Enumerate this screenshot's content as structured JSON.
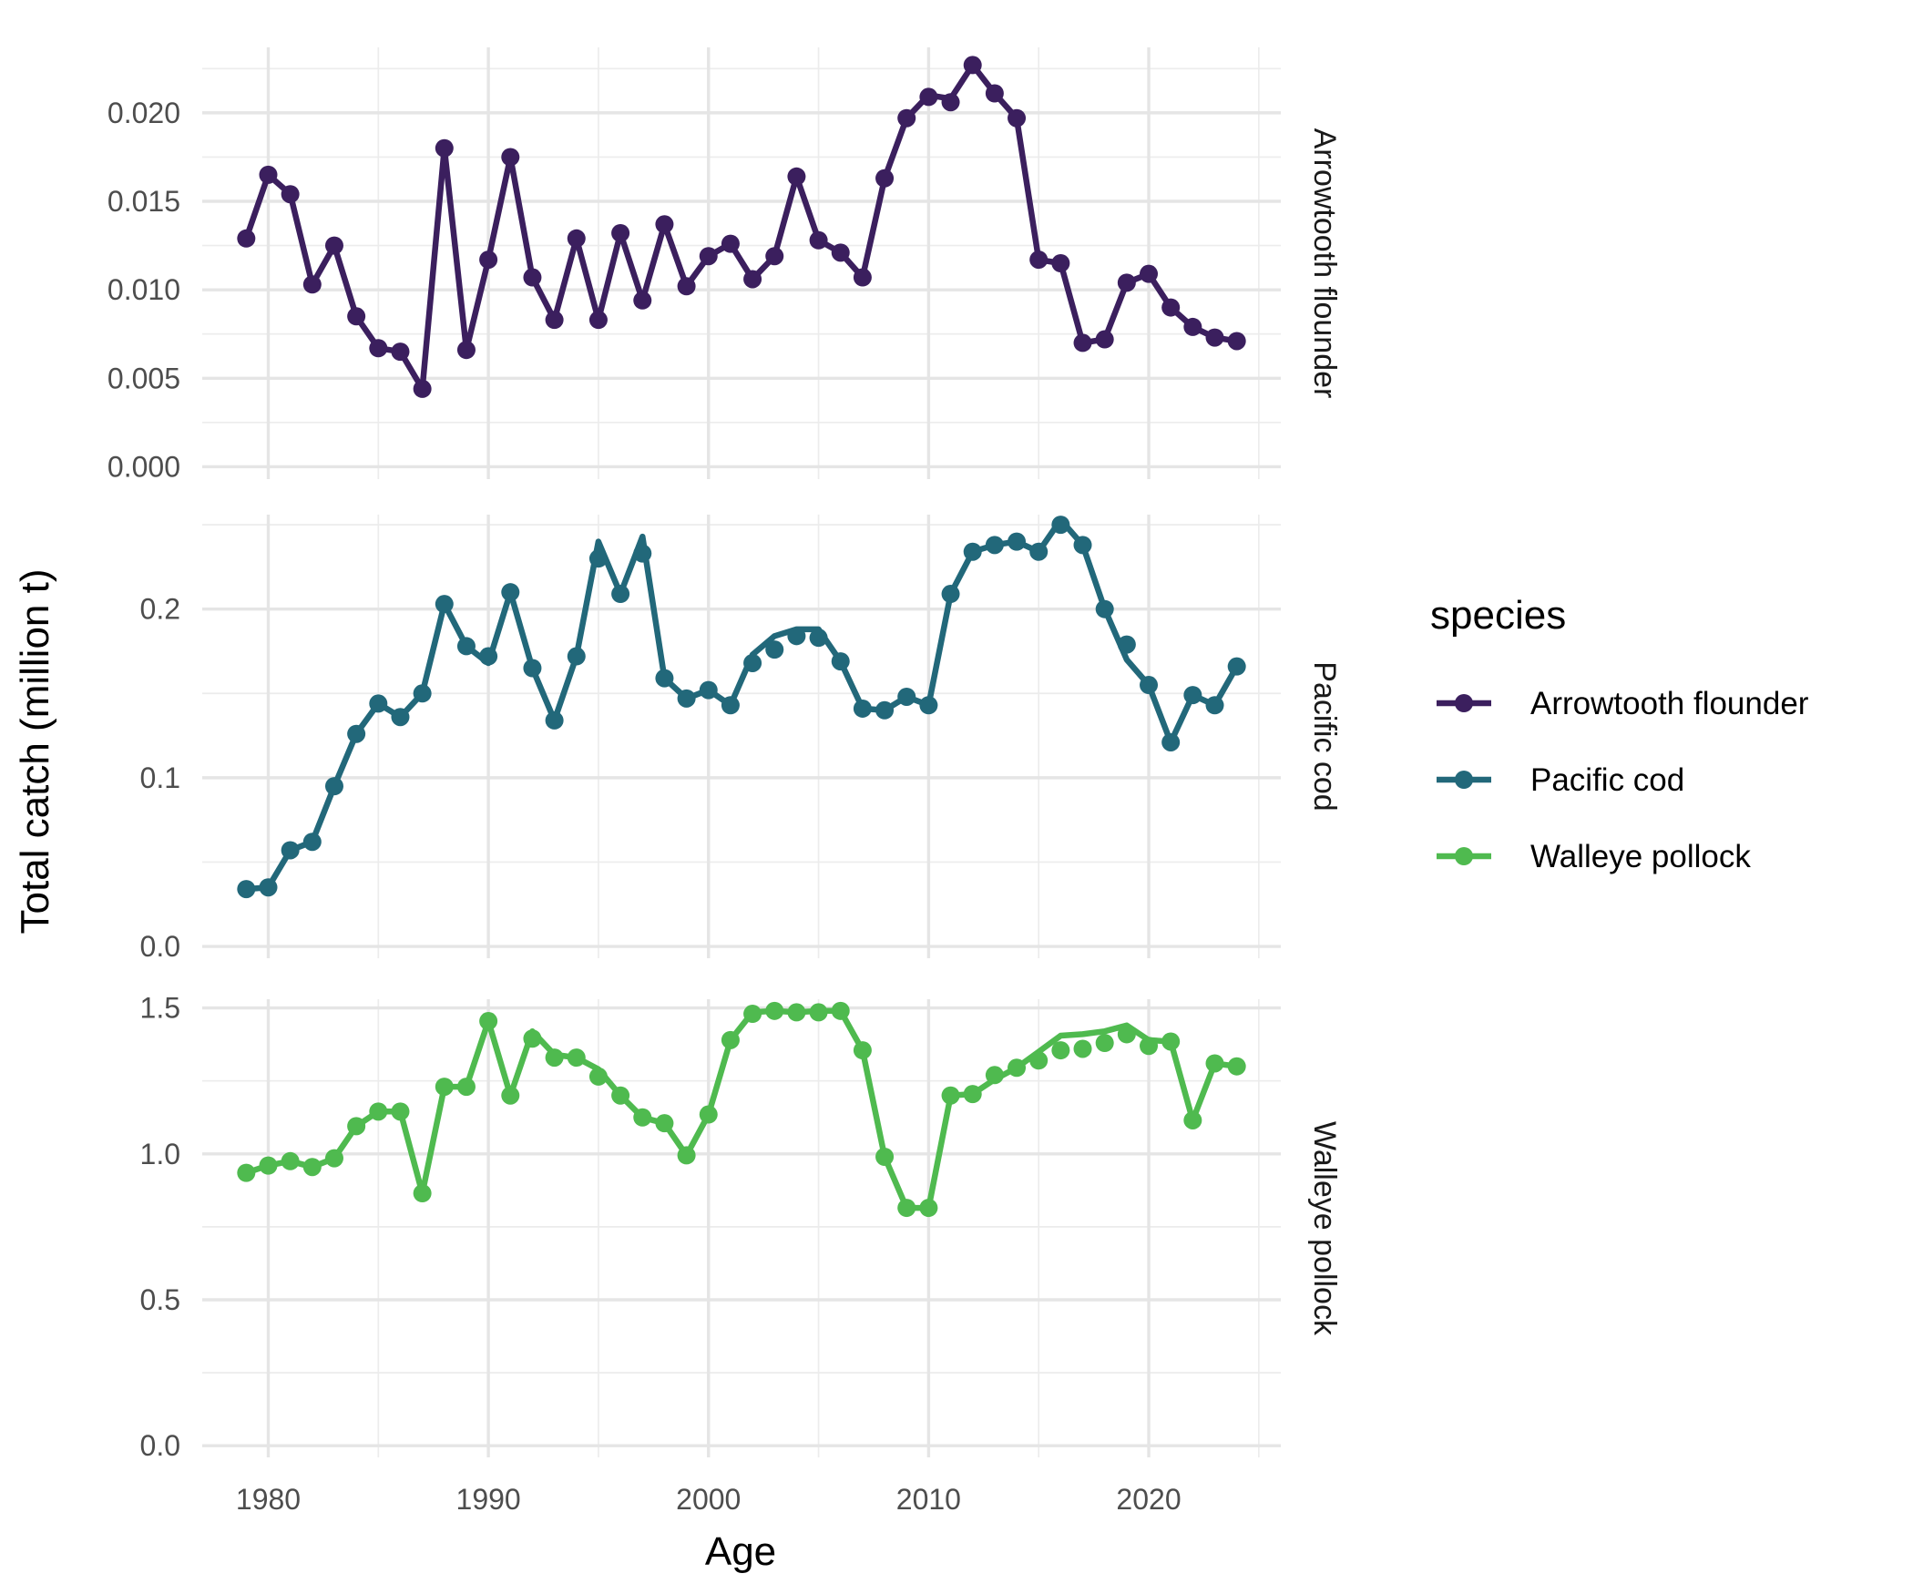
{
  "chart_data": {
    "type": "line",
    "xlabel": "Age",
    "ylabel": "Total catch (million t)",
    "legend": {
      "title": "species",
      "position": "right"
    },
    "grid": true,
    "x_ticks": [
      1980,
      1990,
      2000,
      2010,
      2020
    ],
    "xlim": [
      1977,
      2026
    ],
    "series": [
      {
        "name": "Arrowtooth flounder",
        "color": "#3b1f5e",
        "ylim": [
          -0.0007,
          0.0237
        ],
        "y_ticks": [
          "0.000",
          "0.005",
          "0.010",
          "0.015",
          "0.020"
        ],
        "y_tick_values": [
          0,
          0.005,
          0.01,
          0.015,
          0.02
        ],
        "line": [
          [
            1979,
            0.0129
          ],
          [
            1980,
            0.0165
          ],
          [
            1981,
            0.0154
          ],
          [
            1982,
            0.0103
          ],
          [
            1983,
            0.0125
          ],
          [
            1984,
            0.0085
          ],
          [
            1985,
            0.0067
          ],
          [
            1986,
            0.0065
          ],
          [
            1987,
            0.0044
          ],
          [
            1988,
            0.018
          ],
          [
            1989,
            0.0066
          ],
          [
            1990,
            0.0117
          ],
          [
            1991,
            0.0175
          ],
          [
            1992,
            0.0107
          ],
          [
            1993,
            0.0083
          ],
          [
            1994,
            0.0129
          ],
          [
            1995,
            0.0083
          ],
          [
            1996,
            0.0132
          ],
          [
            1997,
            0.0094
          ],
          [
            1998,
            0.0137
          ],
          [
            1999,
            0.0102
          ],
          [
            2000,
            0.0119
          ],
          [
            2001,
            0.0126
          ],
          [
            2002,
            0.0106
          ],
          [
            2003,
            0.0119
          ],
          [
            2004,
            0.0164
          ],
          [
            2005,
            0.0128
          ],
          [
            2006,
            0.0121
          ],
          [
            2007,
            0.0107
          ],
          [
            2008,
            0.0163
          ],
          [
            2009,
            0.0197
          ],
          [
            2010,
            0.021
          ],
          [
            2011,
            0.0208
          ],
          [
            2012,
            0.0227
          ],
          [
            2013,
            0.0211
          ],
          [
            2014,
            0.0197
          ],
          [
            2015,
            0.0117
          ],
          [
            2016,
            0.0115
          ],
          [
            2017,
            0.007
          ],
          [
            2018,
            0.0072
          ],
          [
            2019,
            0.0104
          ],
          [
            2020,
            0.0109
          ],
          [
            2021,
            0.009
          ],
          [
            2022,
            0.0079
          ],
          [
            2023,
            0.0073
          ],
          [
            2024,
            0.0071
          ]
        ],
        "points": [
          [
            1979,
            0.0129
          ],
          [
            1980,
            0.0165
          ],
          [
            1981,
            0.0154
          ],
          [
            1982,
            0.0103
          ],
          [
            1983,
            0.0125
          ],
          [
            1984,
            0.0085
          ],
          [
            1985,
            0.0067
          ],
          [
            1986,
            0.0065
          ],
          [
            1987,
            0.0044
          ],
          [
            1988,
            0.018
          ],
          [
            1989,
            0.0066
          ],
          [
            1990,
            0.0117
          ],
          [
            1991,
            0.0175
          ],
          [
            1992,
            0.0107
          ],
          [
            1993,
            0.0083
          ],
          [
            1994,
            0.0129
          ],
          [
            1995,
            0.0083
          ],
          [
            1996,
            0.0132
          ],
          [
            1997,
            0.0094
          ],
          [
            1998,
            0.0137
          ],
          [
            1999,
            0.0102
          ],
          [
            2000,
            0.0119
          ],
          [
            2001,
            0.0126
          ],
          [
            2002,
            0.0106
          ],
          [
            2003,
            0.0119
          ],
          [
            2004,
            0.0164
          ],
          [
            2005,
            0.0128
          ],
          [
            2006,
            0.0121
          ],
          [
            2007,
            0.0107
          ],
          [
            2008,
            0.0163
          ],
          [
            2009,
            0.0197
          ],
          [
            2010,
            0.0209
          ],
          [
            2011,
            0.0206
          ],
          [
            2012,
            0.0227
          ],
          [
            2013,
            0.0211
          ],
          [
            2014,
            0.0197
          ],
          [
            2015,
            0.0117
          ],
          [
            2016,
            0.0115
          ],
          [
            2017,
            0.007
          ],
          [
            2018,
            0.0072
          ],
          [
            2019,
            0.0104
          ],
          [
            2020,
            0.0109
          ],
          [
            2021,
            0.009
          ],
          [
            2022,
            0.0079
          ],
          [
            2023,
            0.0073
          ],
          [
            2024,
            0.0071
          ]
        ]
      },
      {
        "name": "Pacific cod",
        "color": "#22687a",
        "ylim": [
          -0.007,
          0.256
        ],
        "y_ticks": [
          "0.0",
          "0.1",
          "0.2"
        ],
        "y_tick_values": [
          0,
          0.1,
          0.2
        ],
        "line": [
          [
            1979,
            0.034
          ],
          [
            1980,
            0.035
          ],
          [
            1981,
            0.057
          ],
          [
            1982,
            0.062
          ],
          [
            1983,
            0.095
          ],
          [
            1984,
            0.126
          ],
          [
            1985,
            0.144
          ],
          [
            1986,
            0.136
          ],
          [
            1987,
            0.15
          ],
          [
            1988,
            0.203
          ],
          [
            1989,
            0.178
          ],
          [
            1990,
            0.168
          ],
          [
            1991,
            0.21
          ],
          [
            1992,
            0.165
          ],
          [
            1993,
            0.134
          ],
          [
            1994,
            0.172
          ],
          [
            1995,
            0.24
          ],
          [
            1996,
            0.209
          ],
          [
            1997,
            0.243
          ],
          [
            1998,
            0.159
          ],
          [
            1999,
            0.147
          ],
          [
            2000,
            0.152
          ],
          [
            2001,
            0.143
          ],
          [
            2002,
            0.173
          ],
          [
            2003,
            0.184
          ],
          [
            2004,
            0.188
          ],
          [
            2005,
            0.188
          ],
          [
            2006,
            0.169
          ],
          [
            2007,
            0.141
          ],
          [
            2008,
            0.14
          ],
          [
            2009,
            0.148
          ],
          [
            2010,
            0.143
          ],
          [
            2011,
            0.209
          ],
          [
            2012,
            0.234
          ],
          [
            2013,
            0.238
          ],
          [
            2014,
            0.24
          ],
          [
            2015,
            0.234
          ],
          [
            2016,
            0.253
          ],
          [
            2017,
            0.238
          ],
          [
            2018,
            0.2
          ],
          [
            2019,
            0.17
          ],
          [
            2020,
            0.155
          ],
          [
            2021,
            0.121
          ],
          [
            2022,
            0.149
          ],
          [
            2023,
            0.143
          ],
          [
            2024,
            0.166
          ]
        ],
        "points": [
          [
            1979,
            0.034
          ],
          [
            1980,
            0.035
          ],
          [
            1981,
            0.057
          ],
          [
            1982,
            0.062
          ],
          [
            1983,
            0.095
          ],
          [
            1984,
            0.126
          ],
          [
            1985,
            0.144
          ],
          [
            1986,
            0.136
          ],
          [
            1987,
            0.15
          ],
          [
            1988,
            0.203
          ],
          [
            1989,
            0.178
          ],
          [
            1990,
            0.172
          ],
          [
            1991,
            0.21
          ],
          [
            1992,
            0.165
          ],
          [
            1993,
            0.134
          ],
          [
            1994,
            0.172
          ],
          [
            1995,
            0.23
          ],
          [
            1996,
            0.209
          ],
          [
            1997,
            0.233
          ],
          [
            1998,
            0.159
          ],
          [
            1999,
            0.147
          ],
          [
            2000,
            0.152
          ],
          [
            2001,
            0.143
          ],
          [
            2002,
            0.168
          ],
          [
            2003,
            0.176
          ],
          [
            2004,
            0.184
          ],
          [
            2005,
            0.183
          ],
          [
            2006,
            0.169
          ],
          [
            2007,
            0.141
          ],
          [
            2008,
            0.14
          ],
          [
            2009,
            0.148
          ],
          [
            2010,
            0.143
          ],
          [
            2011,
            0.209
          ],
          [
            2012,
            0.234
          ],
          [
            2013,
            0.238
          ],
          [
            2014,
            0.24
          ],
          [
            2015,
            0.234
          ],
          [
            2016,
            0.25
          ],
          [
            2017,
            0.238
          ],
          [
            2018,
            0.2
          ],
          [
            2019,
            0.179
          ],
          [
            2020,
            0.155
          ],
          [
            2021,
            0.121
          ],
          [
            2022,
            0.149
          ],
          [
            2023,
            0.143
          ],
          [
            2024,
            0.166
          ]
        ]
      },
      {
        "name": "Walleye pollock",
        "color": "#4fba4f",
        "ylim": [
          -0.04,
          1.53
        ],
        "y_ticks": [
          "0.0",
          "0.5",
          "1.0",
          "1.5"
        ],
        "y_tick_values": [
          0,
          0.5,
          1.0,
          1.5
        ],
        "line": [
          [
            1979,
            0.935
          ],
          [
            1980,
            0.96
          ],
          [
            1981,
            0.975
          ],
          [
            1982,
            0.955
          ],
          [
            1983,
            0.985
          ],
          [
            1984,
            1.095
          ],
          [
            1985,
            1.145
          ],
          [
            1986,
            1.145
          ],
          [
            1987,
            0.865
          ],
          [
            1988,
            1.23
          ],
          [
            1989,
            1.23
          ],
          [
            1990,
            1.455
          ],
          [
            1991,
            1.2
          ],
          [
            1992,
            1.42
          ],
          [
            1993,
            1.34
          ],
          [
            1994,
            1.33
          ],
          [
            1995,
            1.29
          ],
          [
            1996,
            1.2
          ],
          [
            1997,
            1.125
          ],
          [
            1998,
            1.105
          ],
          [
            1999,
            0.995
          ],
          [
            2000,
            1.135
          ],
          [
            2001,
            1.39
          ],
          [
            2002,
            1.485
          ],
          [
            2003,
            1.49
          ],
          [
            2004,
            1.485
          ],
          [
            2005,
            1.49
          ],
          [
            2006,
            1.49
          ],
          [
            2007,
            1.355
          ],
          [
            2008,
            0.99
          ],
          [
            2009,
            0.815
          ],
          [
            2010,
            0.815
          ],
          [
            2011,
            1.2
          ],
          [
            2012,
            1.205
          ],
          [
            2013,
            1.255
          ],
          [
            2014,
            1.295
          ],
          [
            2015,
            1.35
          ],
          [
            2016,
            1.405
          ],
          [
            2017,
            1.41
          ],
          [
            2018,
            1.42
          ],
          [
            2019,
            1.44
          ],
          [
            2020,
            1.39
          ],
          [
            2021,
            1.385
          ],
          [
            2022,
            1.115
          ],
          [
            2023,
            1.31
          ],
          [
            2024,
            1.3
          ]
        ],
        "points": [
          [
            1979,
            0.935
          ],
          [
            1980,
            0.96
          ],
          [
            1981,
            0.975
          ],
          [
            1982,
            0.955
          ],
          [
            1983,
            0.985
          ],
          [
            1984,
            1.095
          ],
          [
            1985,
            1.145
          ],
          [
            1986,
            1.145
          ],
          [
            1987,
            0.865
          ],
          [
            1988,
            1.23
          ],
          [
            1989,
            1.23
          ],
          [
            1990,
            1.455
          ],
          [
            1991,
            1.2
          ],
          [
            1992,
            1.395
          ],
          [
            1993,
            1.33
          ],
          [
            1994,
            1.33
          ],
          [
            1995,
            1.265
          ],
          [
            1996,
            1.2
          ],
          [
            1997,
            1.125
          ],
          [
            1998,
            1.105
          ],
          [
            1999,
            0.995
          ],
          [
            2000,
            1.135
          ],
          [
            2001,
            1.39
          ],
          [
            2002,
            1.48
          ],
          [
            2003,
            1.49
          ],
          [
            2004,
            1.485
          ],
          [
            2005,
            1.485
          ],
          [
            2006,
            1.49
          ],
          [
            2007,
            1.355
          ],
          [
            2008,
            0.99
          ],
          [
            2009,
            0.815
          ],
          [
            2010,
            0.815
          ],
          [
            2011,
            1.2
          ],
          [
            2012,
            1.205
          ],
          [
            2013,
            1.27
          ],
          [
            2014,
            1.295
          ],
          [
            2015,
            1.32
          ],
          [
            2016,
            1.355
          ],
          [
            2017,
            1.36
          ],
          [
            2018,
            1.38
          ],
          [
            2019,
            1.41
          ],
          [
            2020,
            1.37
          ],
          [
            2021,
            1.385
          ],
          [
            2022,
            1.115
          ],
          [
            2023,
            1.31
          ],
          [
            2024,
            1.3
          ]
        ]
      }
    ]
  }
}
